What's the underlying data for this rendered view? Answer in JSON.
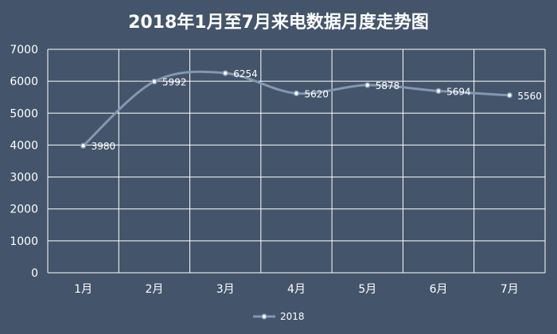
{
  "chart_data": {
    "type": "line",
    "title": "2018年1月至7月来电数据月度走势图",
    "categories": [
      "1月",
      "2月",
      "3月",
      "4月",
      "5月",
      "6月",
      "7月"
    ],
    "series": [
      {
        "name": "2018",
        "values": [
          3980,
          5992,
          6254,
          5620,
          5878,
          5694,
          5560
        ],
        "color": "#8497B0"
      }
    ],
    "ylim": [
      0,
      7000
    ],
    "yticks": [
      0,
      1000,
      2000,
      3000,
      4000,
      5000,
      6000,
      7000
    ],
    "grid": true,
    "smooth": true,
    "legend_position": "bottom",
    "background_color": "#44546A",
    "grid_color": "#ffffff"
  }
}
